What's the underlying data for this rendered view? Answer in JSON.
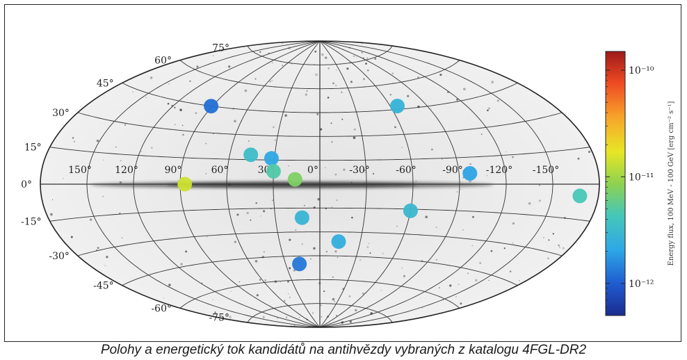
{
  "caption": "Polohy a energetický tok kandidátů na antihvězdy vybraných z katalogu 4FGL-DR2",
  "chart_data": {
    "type": "scatter",
    "projection": "aitoff",
    "background": "all-sky gamma-ray map with bright galactic plane",
    "grid": true,
    "lon_tick_labels": [
      "150°",
      "120°",
      "90°",
      "60°",
      "30°",
      "0°",
      "-30°",
      "-60°",
      "-90°",
      "-120°",
      "-150°"
    ],
    "lat_tick_labels": [
      "75°",
      "60°",
      "45°",
      "30°",
      "15°",
      "0°",
      "-15°",
      "-30°",
      "-45°",
      "-60°",
      "-75°"
    ],
    "colorbar": {
      "label": "Energy flux, 100 MeV - 100 GeV [erg cm⁻² s⁻¹]",
      "scale": "log",
      "range": [
        5e-13,
        1.5e-10
      ],
      "tick_labels": [
        "10⁻¹⁰",
        "10⁻¹¹",
        "10⁻¹²"
      ],
      "tick_values": [
        1e-10,
        1e-11,
        1e-12
      ],
      "colormap": "jet"
    },
    "points": [
      {
        "lon": 91,
        "lat": 45,
        "flux": 1.2e-12
      },
      {
        "lon": -66,
        "lat": 47,
        "flux": 2.7e-12
      },
      {
        "lon": 46,
        "lat": 18,
        "flux": 3.4e-12
      },
      {
        "lon": 32,
        "lat": 16,
        "flux": 2.1e-12
      },
      {
        "lon": 30,
        "lat": 8,
        "flux": 4.8e-12
      },
      {
        "lon": 16,
        "lat": 3,
        "flux": 7.5e-12
      },
      {
        "lon": 87,
        "lat": 0,
        "flux": 1.4e-11
      },
      {
        "lon": -97,
        "lat": 6,
        "flux": 2e-12
      },
      {
        "lon": -168,
        "lat": -5,
        "flux": 4.4e-12
      },
      {
        "lon": -60,
        "lat": -16,
        "flux": 3e-12
      },
      {
        "lon": 12,
        "lat": -21,
        "flux": 2.8e-12
      },
      {
        "lon": -14,
        "lat": -36,
        "flux": 2.4e-12
      },
      {
        "lon": 18,
        "lat": -50,
        "flux": 1.3e-12
      }
    ]
  }
}
